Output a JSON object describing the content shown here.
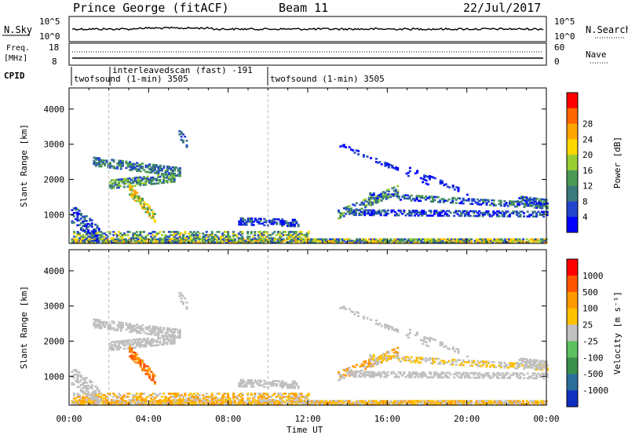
{
  "header": {
    "title": "Prince George (fitACF)",
    "beam": "Beam 11",
    "date": "22/Jul/2017"
  },
  "noise_panel": {
    "left_label": "N.Sky",
    "right_label": "N.Search",
    "left_ticks": [
      "10^5",
      "10^0"
    ],
    "right_ticks": [
      "10^5",
      "10^0"
    ]
  },
  "freq_panel": {
    "left_label_1": "Freq.",
    "left_label_2": "[MHz]",
    "right_label": "Nave",
    "left_ticks": [
      "18",
      "8"
    ],
    "right_ticks": [
      "60",
      "0"
    ],
    "cpid_label": "CPID"
  },
  "cpid_segments": [
    {
      "text": "twofsound (1-min) 3505"
    },
    {
      "text": "interleavedscan (fast) -191"
    },
    {
      "text": "twofsound (1-min) 3505"
    }
  ],
  "colors": {
    "power": [
      "#0000ff",
      "#2244cc",
      "#3a7a7a",
      "#4a9a55",
      "#9acd32",
      "#ffd700",
      "#ffa500",
      "#ff6600",
      "#ff0000"
    ],
    "velocity": [
      "#1030c0",
      "#2a6f9a",
      "#3a8f4a",
      "#5cc060",
      "#c0c0c0",
      "#ffc000",
      "#ff9900",
      "#ff5500",
      "#ff0000"
    ]
  },
  "chart_data": [
    {
      "type": "heatmap",
      "title": "Power",
      "xlabel": "",
      "ylabel": "Slant Range [km]",
      "x_ticks": [
        "00:00",
        "04:00",
        "08:00",
        "12:00",
        "16:00",
        "20:00",
        "00:00"
      ],
      "y_ticks": [
        "1000",
        "2000",
        "3000",
        "4000"
      ],
      "ylim": [
        180,
        4600
      ],
      "colorbar_label": "Power [dB]",
      "colorbar_ticks": [
        "4",
        "8",
        "12",
        "16",
        "20",
        "24",
        "28"
      ]
    },
    {
      "type": "heatmap",
      "title": "Velocity",
      "xlabel": "Time UT",
      "ylabel": "Slant Range [km]",
      "x_ticks": [
        "00:00",
        "04:00",
        "08:00",
        "12:00",
        "16:00",
        "20:00",
        "00:00"
      ],
      "y_ticks": [
        "1000",
        "2000",
        "3000",
        "4000"
      ],
      "ylim": [
        180,
        4600
      ],
      "colorbar_label": "Velocity [m s⁻¹]",
      "colorbar_ticks": [
        "1000",
        "500",
        "100",
        "25",
        "-25",
        "-100",
        "-500",
        "-1000"
      ]
    }
  ]
}
